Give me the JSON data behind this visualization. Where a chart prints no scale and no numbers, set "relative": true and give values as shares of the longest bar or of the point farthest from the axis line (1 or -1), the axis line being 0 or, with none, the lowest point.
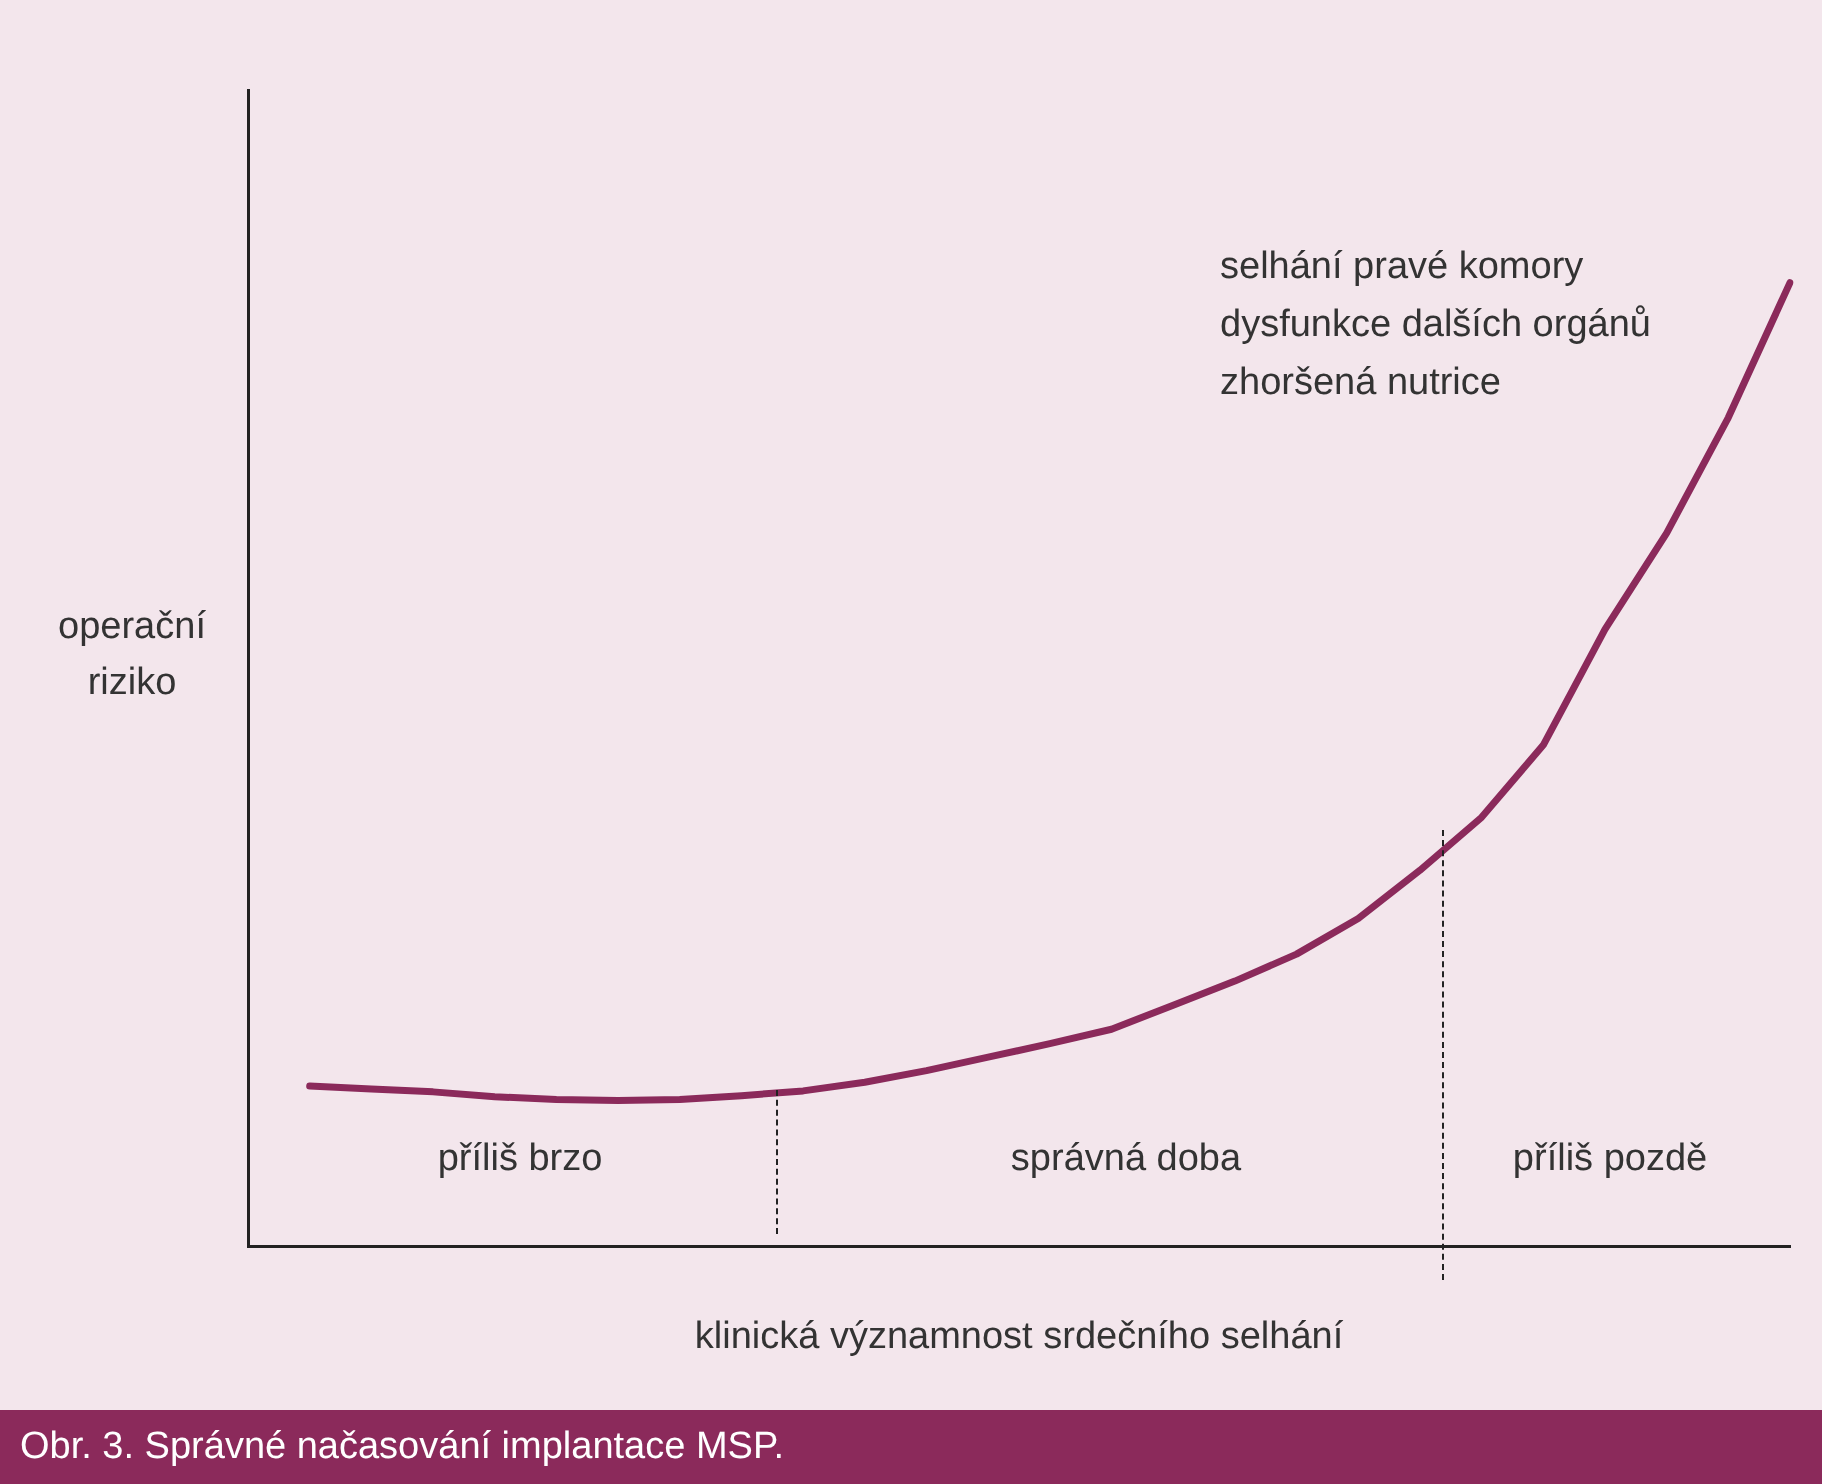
{
  "chart_data": {
    "type": "line",
    "relative": true,
    "title": "Obr. 3. Správné načasování implantace MSP.",
    "xlabel": "klinická významnost srdečního selhání",
    "ylabel": "operační riziko",
    "tick_labels": false,
    "grid": false,
    "legend": false,
    "marker": "none",
    "line_style": "solid",
    "categories": [
      null,
      null,
      null,
      null,
      null,
      null,
      null,
      null,
      null,
      null,
      null,
      null,
      null,
      null,
      null,
      null,
      null,
      null,
      null,
      null,
      null,
      null,
      null,
      null,
      null,
      null
    ],
    "series": [
      {
        "color": "#8b2a5b",
        "values": [
          null,
          0.166,
          0.163,
          0.16,
          0.155,
          0.152,
          0.151,
          0.152,
          0.156,
          0.161,
          0.17,
          0.182,
          0.196,
          0.21,
          0.225,
          0.25,
          0.275,
          0.303,
          0.34,
          0.39,
          0.445,
          0.52,
          0.64,
          0.74,
          0.86,
          1
        ]
      }
    ],
    "annotations": [
      "selhání pravé komory",
      "dysfunkce dalších orgánů",
      "zhoršená nutrice",
      "příliš brzo",
      "správná doba",
      "příliš pozdě"
    ]
  }
}
